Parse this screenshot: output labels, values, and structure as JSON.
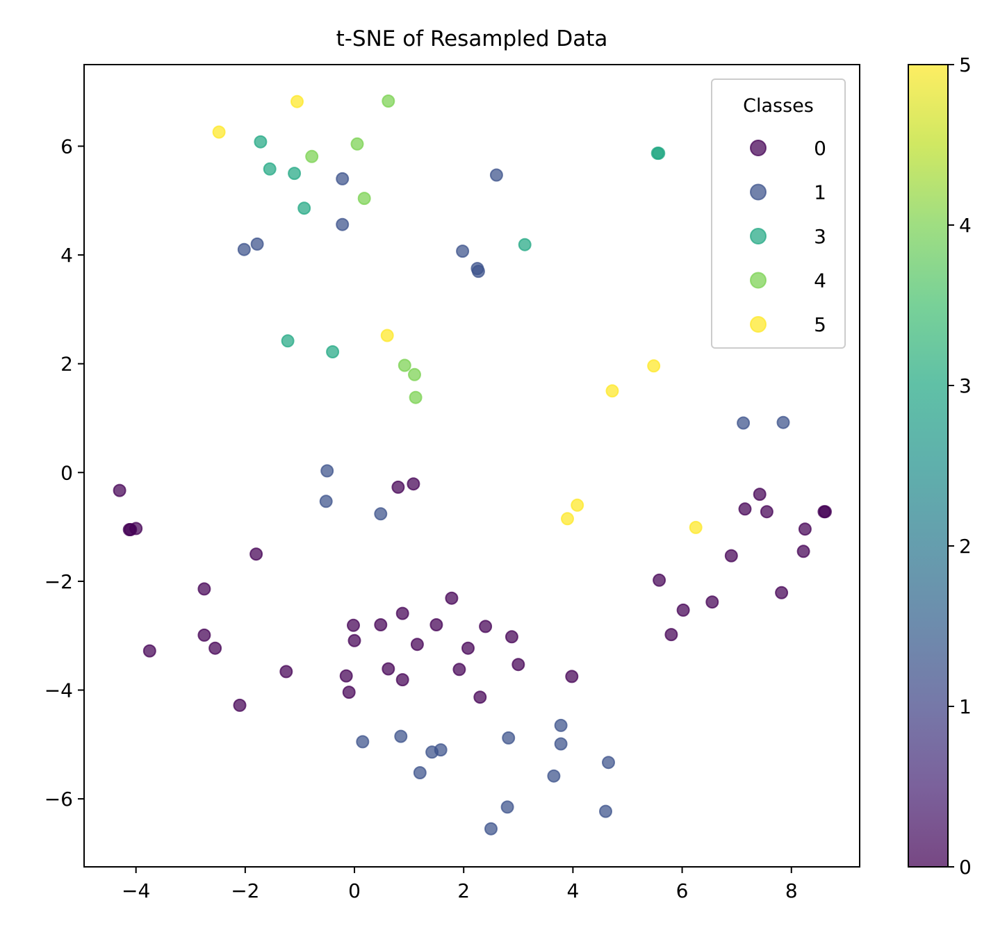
{
  "chart_data": {
    "type": "scatter",
    "title": "t-SNE of Resampled Data",
    "xlabel": "",
    "ylabel": "",
    "xlim": [
      -4.95,
      9.25
    ],
    "ylim": [
      -7.25,
      7.5
    ],
    "xticks": [
      -4,
      -2,
      0,
      2,
      4,
      6,
      8
    ],
    "yticks": [
      -6,
      -4,
      -2,
      0,
      2,
      4,
      6
    ],
    "xtick_labels": [
      "−4",
      "−2",
      "0",
      "2",
      "4",
      "6",
      "8"
    ],
    "ytick_labels": [
      "−6",
      "−4",
      "−2",
      "0",
      "2",
      "4",
      "6"
    ],
    "grid": false,
    "colormap": "viridis",
    "color_range": [
      0,
      5
    ],
    "class_colors": {
      "0": "#440154",
      "1": "#3b528b",
      "2": "#21918c",
      "3": "#22a884",
      "4": "#7ad151",
      "5": "#fde725"
    },
    "legend": {
      "title": "Classes",
      "placement": "top-right",
      "entries": [
        {
          "label": "0",
          "class": 0
        },
        {
          "label": "1",
          "class": 1
        },
        {
          "label": "3",
          "class": 3
        },
        {
          "label": "4",
          "class": 4
        },
        {
          "label": "5",
          "class": 5
        }
      ]
    },
    "colorbar": {
      "ticks": [
        0,
        1,
        2,
        3,
        4,
        5
      ],
      "tick_labels": [
        "0",
        "1",
        "2",
        "3",
        "4",
        "5"
      ]
    },
    "points": [
      {
        "x": -4.3,
        "y": -0.33,
        "c": 0
      },
      {
        "x": -4.1,
        "y": -1.05,
        "c": 0
      },
      {
        "x": -4.0,
        "y": -1.03,
        "c": 0
      },
      {
        "x": -4.12,
        "y": -1.05,
        "c": 0
      },
      {
        "x": -3.75,
        "y": -3.28,
        "c": 0
      },
      {
        "x": -2.75,
        "y": -2.14,
        "c": 0
      },
      {
        "x": -2.75,
        "y": -2.99,
        "c": 0
      },
      {
        "x": -2.55,
        "y": -3.23,
        "c": 0
      },
      {
        "x": -2.1,
        "y": -4.28,
        "c": 0
      },
      {
        "x": -1.8,
        "y": -1.5,
        "c": 0
      },
      {
        "x": -1.25,
        "y": -3.66,
        "c": 0
      },
      {
        "x": -0.15,
        "y": -3.74,
        "c": 0
      },
      {
        "x": -0.1,
        "y": -4.04,
        "c": 0
      },
      {
        "x": -0.02,
        "y": -2.81,
        "c": 0
      },
      {
        "x": 0.0,
        "y": -3.09,
        "c": 0
      },
      {
        "x": 0.48,
        "y": -2.8,
        "c": 0
      },
      {
        "x": 0.62,
        "y": -3.61,
        "c": 0
      },
      {
        "x": 0.8,
        "y": -0.27,
        "c": 0
      },
      {
        "x": 0.88,
        "y": -2.59,
        "c": 0
      },
      {
        "x": 0.88,
        "y": -3.81,
        "c": 0
      },
      {
        "x": 1.08,
        "y": -0.21,
        "c": 0
      },
      {
        "x": 1.15,
        "y": -3.16,
        "c": 0
      },
      {
        "x": 1.5,
        "y": -2.8,
        "c": 0
      },
      {
        "x": 1.78,
        "y": -2.31,
        "c": 0
      },
      {
        "x": 1.92,
        "y": -3.62,
        "c": 0
      },
      {
        "x": 2.08,
        "y": -3.23,
        "c": 0
      },
      {
        "x": 2.3,
        "y": -4.13,
        "c": 0
      },
      {
        "x": 2.4,
        "y": -2.83,
        "c": 0
      },
      {
        "x": 2.88,
        "y": -3.02,
        "c": 0
      },
      {
        "x": 3.0,
        "y": -3.53,
        "c": 0
      },
      {
        "x": 3.98,
        "y": -3.75,
        "c": 0
      },
      {
        "x": 5.58,
        "y": -1.98,
        "c": 0
      },
      {
        "x": 5.8,
        "y": -2.98,
        "c": 0
      },
      {
        "x": 6.02,
        "y": -2.53,
        "c": 0
      },
      {
        "x": 6.55,
        "y": -2.38,
        "c": 0
      },
      {
        "x": 6.9,
        "y": -1.53,
        "c": 0
      },
      {
        "x": 7.15,
        "y": -0.67,
        "c": 0
      },
      {
        "x": 7.42,
        "y": -0.4,
        "c": 0
      },
      {
        "x": 7.55,
        "y": -0.72,
        "c": 0
      },
      {
        "x": 7.82,
        "y": -2.21,
        "c": 0
      },
      {
        "x": 8.22,
        "y": -1.45,
        "c": 0
      },
      {
        "x": 8.25,
        "y": -1.04,
        "c": 0
      },
      {
        "x": 8.6,
        "y": -0.72,
        "c": 0
      },
      {
        "x": 8.62,
        "y": -0.72,
        "c": 0
      },
      {
        "x": -2.02,
        "y": 4.1,
        "c": 1
      },
      {
        "x": -1.78,
        "y": 4.2,
        "c": 1
      },
      {
        "x": -0.22,
        "y": 5.4,
        "c": 1
      },
      {
        "x": -0.22,
        "y": 4.56,
        "c": 1
      },
      {
        "x": -0.5,
        "y": 0.03,
        "c": 1
      },
      {
        "x": -0.52,
        "y": -0.53,
        "c": 1
      },
      {
        "x": 0.48,
        "y": -0.76,
        "c": 1
      },
      {
        "x": 1.98,
        "y": 4.07,
        "c": 1
      },
      {
        "x": 2.25,
        "y": 3.75,
        "c": 1
      },
      {
        "x": 2.27,
        "y": 3.7,
        "c": 1
      },
      {
        "x": 2.6,
        "y": 5.47,
        "c": 1
      },
      {
        "x": 7.12,
        "y": 0.91,
        "c": 1
      },
      {
        "x": 7.85,
        "y": 0.92,
        "c": 1
      },
      {
        "x": 0.15,
        "y": -4.95,
        "c": 1
      },
      {
        "x": 0.85,
        "y": -4.85,
        "c": 1
      },
      {
        "x": 1.2,
        "y": -5.52,
        "c": 1
      },
      {
        "x": 1.42,
        "y": -5.14,
        "c": 1
      },
      {
        "x": 1.58,
        "y": -5.1,
        "c": 1
      },
      {
        "x": 2.5,
        "y": -6.55,
        "c": 1
      },
      {
        "x": 2.8,
        "y": -6.15,
        "c": 1
      },
      {
        "x": 2.82,
        "y": -4.88,
        "c": 1
      },
      {
        "x": 3.65,
        "y": -5.58,
        "c": 1
      },
      {
        "x": 3.78,
        "y": -4.65,
        "c": 1
      },
      {
        "x": 3.78,
        "y": -4.99,
        "c": 1
      },
      {
        "x": 4.6,
        "y": -6.23,
        "c": 1
      },
      {
        "x": 4.65,
        "y": -5.33,
        "c": 1
      },
      {
        "x": -1.72,
        "y": 6.08,
        "c": 3
      },
      {
        "x": -1.55,
        "y": 5.58,
        "c": 3
      },
      {
        "x": -1.1,
        "y": 5.5,
        "c": 3
      },
      {
        "x": -0.92,
        "y": 4.86,
        "c": 3
      },
      {
        "x": -1.22,
        "y": 2.42,
        "c": 3
      },
      {
        "x": -0.4,
        "y": 2.22,
        "c": 3
      },
      {
        "x": 3.12,
        "y": 4.19,
        "c": 3
      },
      {
        "x": 5.55,
        "y": 5.87,
        "c": 3
      },
      {
        "x": 5.57,
        "y": 5.87,
        "c": 3
      },
      {
        "x": -0.78,
        "y": 5.81,
        "c": 4
      },
      {
        "x": 0.05,
        "y": 6.04,
        "c": 4
      },
      {
        "x": 0.18,
        "y": 5.04,
        "c": 4
      },
      {
        "x": 0.62,
        "y": 6.83,
        "c": 4
      },
      {
        "x": 0.92,
        "y": 1.97,
        "c": 4
      },
      {
        "x": 1.1,
        "y": 1.8,
        "c": 4
      },
      {
        "x": 1.12,
        "y": 1.38,
        "c": 4
      },
      {
        "x": -2.48,
        "y": 6.26,
        "c": 5
      },
      {
        "x": -1.05,
        "y": 6.82,
        "c": 5
      },
      {
        "x": 0.6,
        "y": 2.52,
        "c": 5
      },
      {
        "x": 4.72,
        "y": 1.5,
        "c": 5
      },
      {
        "x": 5.48,
        "y": 1.96,
        "c": 5
      },
      {
        "x": 3.9,
        "y": -0.85,
        "c": 5
      },
      {
        "x": 4.08,
        "y": -0.6,
        "c": 5
      },
      {
        "x": 6.25,
        "y": -1.01,
        "c": 5
      }
    ]
  }
}
